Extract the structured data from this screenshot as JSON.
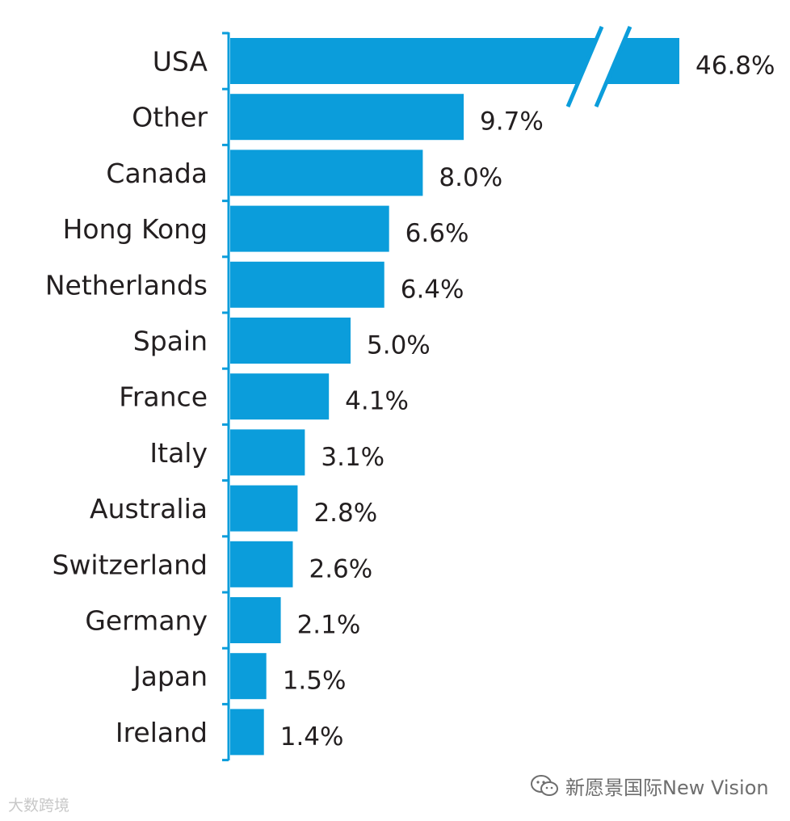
{
  "chart_data": {
    "type": "bar",
    "orientation": "horizontal",
    "categories": [
      "USA",
      "Other",
      "Canada",
      "Hong Kong",
      "Netherlands",
      "Spain",
      "France",
      "Italy",
      "Australia",
      "Switzerland",
      "Germany",
      "Japan",
      "Ireland"
    ],
    "values": [
      46.8,
      9.7,
      8.0,
      6.6,
      6.4,
      5.0,
      4.1,
      3.1,
      2.8,
      2.6,
      2.1,
      1.5,
      1.4
    ],
    "value_labels": [
      "46.8%",
      "9.7%",
      "8.0%",
      "6.6%",
      "6.4%",
      "5.0%",
      "4.1%",
      "3.1%",
      "2.8%",
      "2.6%",
      "2.1%",
      "1.5%",
      "1.4%"
    ],
    "axis_break_on": "USA",
    "grid": false,
    "legend": "none",
    "bar_color": "#0b9ddb",
    "title": "",
    "xlabel": "",
    "ylabel": ""
  },
  "watermarks": {
    "left": "大数跨境",
    "right": "新愿景国际New Vision"
  },
  "colors": {
    "bar": "#0b9ddb",
    "axis": "#0b9ddb",
    "text": "#231f20"
  }
}
